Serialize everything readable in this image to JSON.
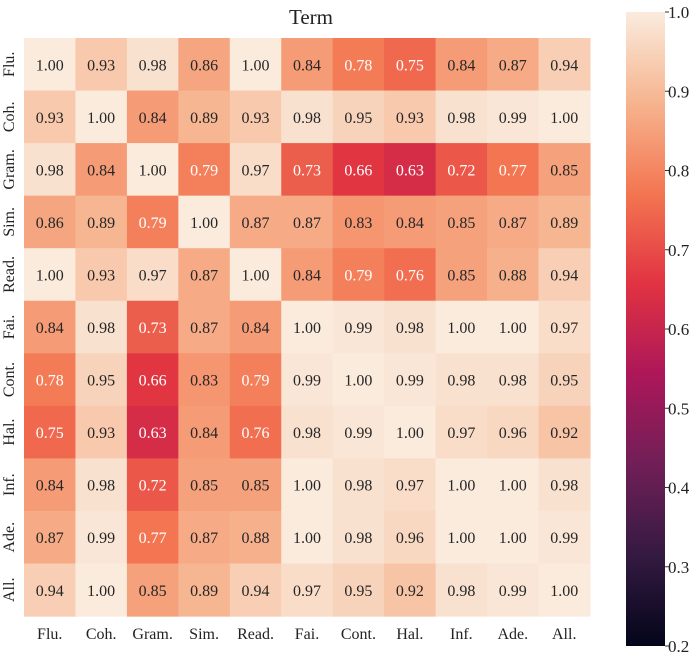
{
  "chart_data": {
    "type": "heatmap",
    "title": "Term",
    "row_labels": [
      "Flu.",
      "Coh.",
      "Gram.",
      "Sim.",
      "Read.",
      "Fai.",
      "Cont.",
      "Hal.",
      "Inf.",
      "Ade.",
      "All."
    ],
    "col_labels": [
      "Flu.",
      "Coh.",
      "Gram.",
      "Sim.",
      "Read.",
      "Fai.",
      "Cont.",
      "Hal.",
      "Inf.",
      "Ade.",
      "All."
    ],
    "values": [
      [
        1.0,
        0.93,
        0.98,
        0.86,
        1.0,
        0.84,
        0.78,
        0.75,
        0.84,
        0.87,
        0.94
      ],
      [
        0.93,
        1.0,
        0.84,
        0.89,
        0.93,
        0.98,
        0.95,
        0.93,
        0.98,
        0.99,
        1.0
      ],
      [
        0.98,
        0.84,
        1.0,
        0.79,
        0.97,
        0.73,
        0.66,
        0.63,
        0.72,
        0.77,
        0.85
      ],
      [
        0.86,
        0.89,
        0.79,
        1.0,
        0.87,
        0.87,
        0.83,
        0.84,
        0.85,
        0.87,
        0.89
      ],
      [
        1.0,
        0.93,
        0.97,
        0.87,
        1.0,
        0.84,
        0.79,
        0.76,
        0.85,
        0.88,
        0.94
      ],
      [
        0.84,
        0.98,
        0.73,
        0.87,
        0.84,
        1.0,
        0.99,
        0.98,
        1.0,
        1.0,
        0.97
      ],
      [
        0.78,
        0.95,
        0.66,
        0.83,
        0.79,
        0.99,
        1.0,
        0.99,
        0.98,
        0.98,
        0.95
      ],
      [
        0.75,
        0.93,
        0.63,
        0.84,
        0.76,
        0.98,
        0.99,
        1.0,
        0.97,
        0.96,
        0.92
      ],
      [
        0.84,
        0.98,
        0.72,
        0.85,
        0.85,
        1.0,
        0.98,
        0.97,
        1.0,
        1.0,
        0.98
      ],
      [
        0.87,
        0.99,
        0.77,
        0.87,
        0.88,
        1.0,
        0.98,
        0.96,
        1.0,
        1.0,
        0.99
      ],
      [
        0.94,
        1.0,
        0.85,
        0.89,
        0.94,
        0.97,
        0.95,
        0.92,
        0.98,
        0.99,
        1.0
      ]
    ],
    "value_format": "0.00",
    "colorbar": {
      "range": [
        0.2,
        1.0
      ],
      "ticks": [
        "0.2",
        "0.3",
        "0.4",
        "0.5",
        "0.6",
        "0.7",
        "0.8",
        "0.9",
        "1.0"
      ],
      "colormap": "rocket",
      "stops": [
        "#03051a",
        "#341a41",
        "#701f57",
        "#ad1759",
        "#e13342",
        "#f37651",
        "#f6b48f",
        "#faebdd"
      ]
    }
  }
}
